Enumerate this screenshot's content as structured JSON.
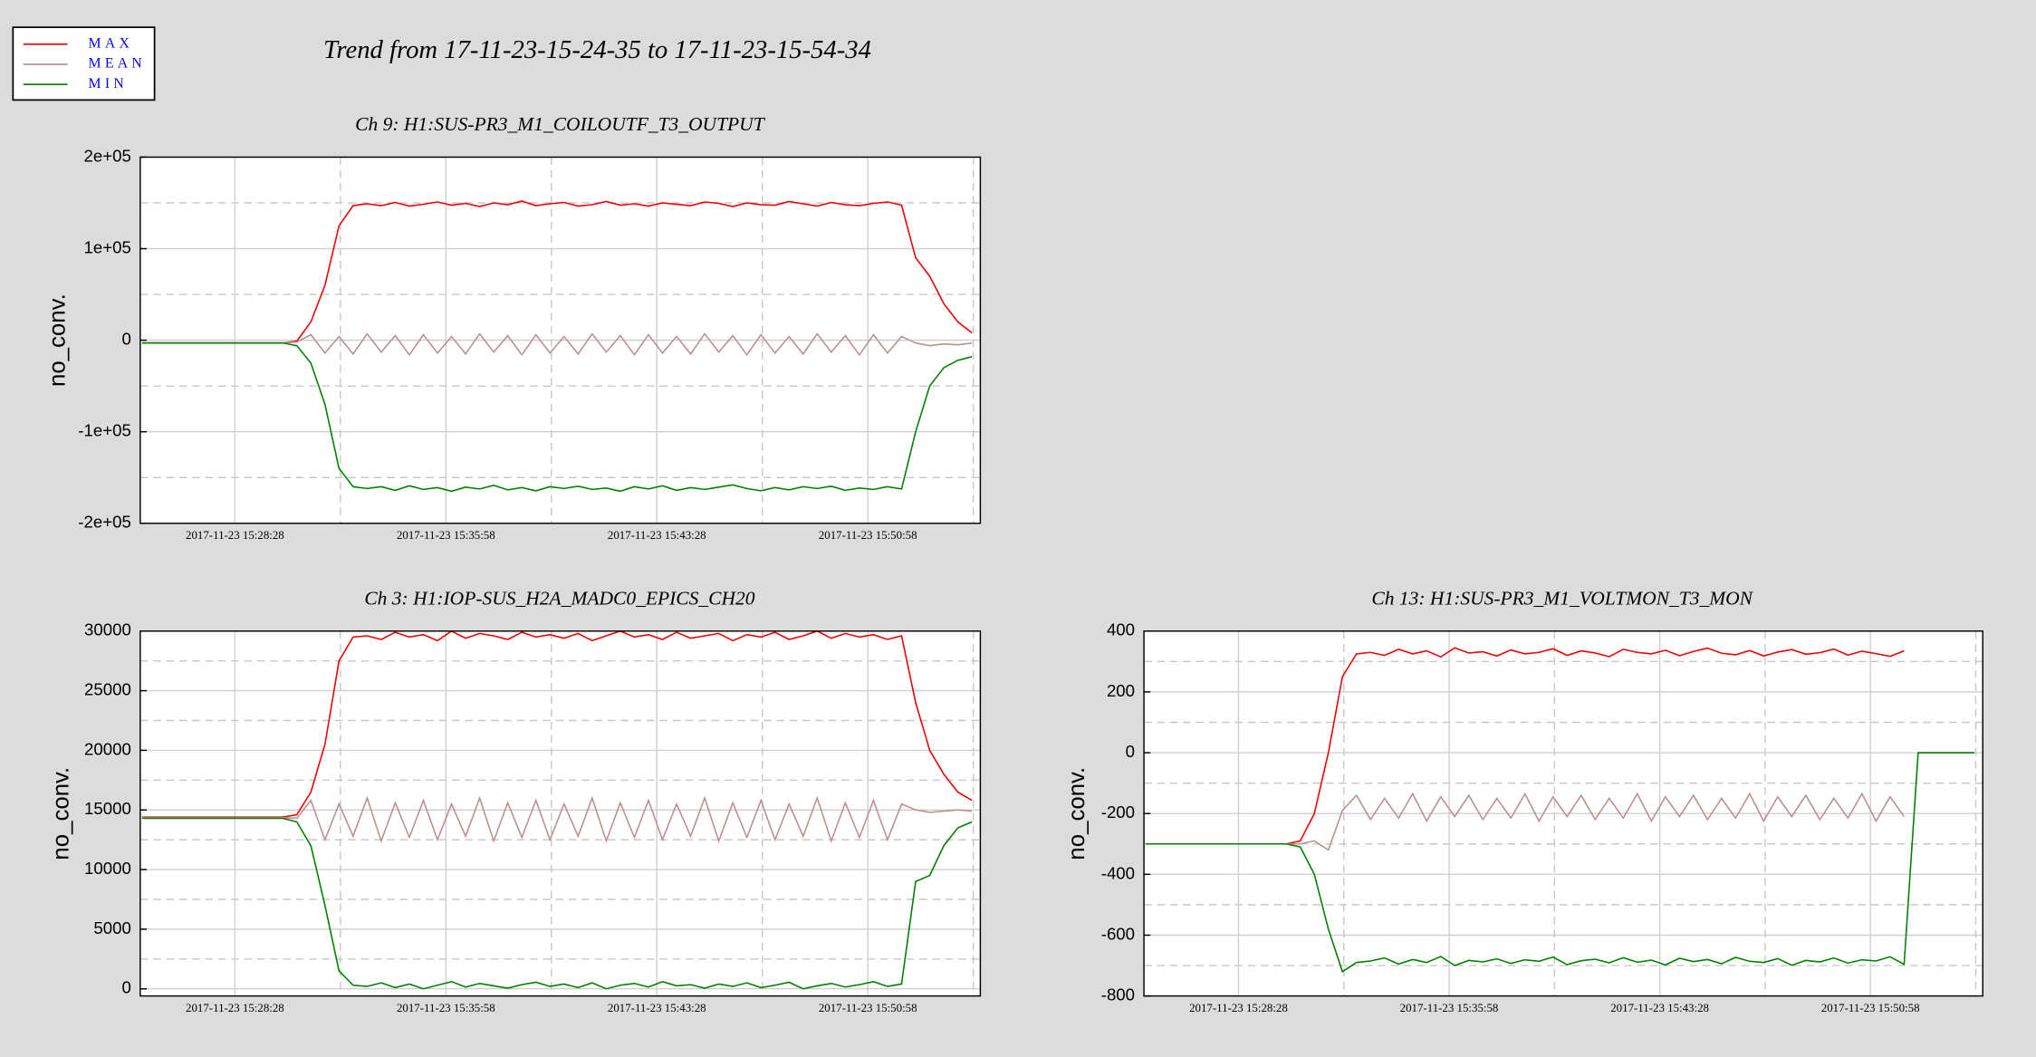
{
  "title": "Trend from 17-11-23-15-24-35 to 17-11-23-15-54-34",
  "chart_data": [
    {
      "type": "line",
      "title": "Ch 9: H1:SUS-PR3_M1_COILOUTF_T3_OUTPUT",
      "ylabel": "no_conv.",
      "grid": true,
      "x": [
        "2017-11-23 15:25:10",
        "2017-11-23 15:25:40",
        "2017-11-23 15:26:10",
        "2017-11-23 15:26:40",
        "2017-11-23 15:27:10",
        "2017-11-23 15:27:40",
        "2017-11-23 15:28:10",
        "2017-11-23 15:28:40",
        "2017-11-23 15:29:10",
        "2017-11-23 15:29:40",
        "2017-11-23 15:30:10",
        "2017-11-23 15:30:40",
        "2017-11-23 15:31:10",
        "2017-11-23 15:31:40",
        "2017-11-23 15:32:10",
        "2017-11-23 15:32:40",
        "2017-11-23 15:33:10",
        "2017-11-23 15:33:40",
        "2017-11-23 15:34:10",
        "2017-11-23 15:34:40",
        "2017-11-23 15:35:10",
        "2017-11-23 15:35:40",
        "2017-11-23 15:36:10",
        "2017-11-23 15:36:40",
        "2017-11-23 15:37:10",
        "2017-11-23 15:37:40",
        "2017-11-23 15:38:10",
        "2017-11-23 15:38:40",
        "2017-11-23 15:39:10",
        "2017-11-23 15:39:40",
        "2017-11-23 15:40:10",
        "2017-11-23 15:40:40",
        "2017-11-23 15:41:10",
        "2017-11-23 15:41:40",
        "2017-11-23 15:42:10",
        "2017-11-23 15:42:40",
        "2017-11-23 15:43:10",
        "2017-11-23 15:43:40",
        "2017-11-23 15:44:10",
        "2017-11-23 15:44:40",
        "2017-11-23 15:45:10",
        "2017-11-23 15:45:40",
        "2017-11-23 15:46:10",
        "2017-11-23 15:46:40",
        "2017-11-23 15:47:10",
        "2017-11-23 15:47:40",
        "2017-11-23 15:48:10",
        "2017-11-23 15:48:40",
        "2017-11-23 15:49:10",
        "2017-11-23 15:49:40",
        "2017-11-23 15:50:10",
        "2017-11-23 15:50:40",
        "2017-11-23 15:51:10",
        "2017-11-23 15:51:40",
        "2017-11-23 15:52:10",
        "2017-11-23 15:52:40",
        "2017-11-23 15:53:10",
        "2017-11-23 15:53:40",
        "2017-11-23 15:54:10",
        "2017-11-23 15:54:40"
      ],
      "xlim": [
        "2017-11-23 15:25:06",
        "2017-11-23 15:54:58"
      ],
      "xticks": [
        "2017-11-23 15:28:28",
        "2017-11-23 15:35:58",
        "2017-11-23 15:43:28",
        "2017-11-23 15:50:58"
      ],
      "ylim": [
        -200000,
        200000
      ],
      "yticks": [
        {
          "value": -200000,
          "label": "-2e+05"
        },
        {
          "value": -100000,
          "label": "-1e+05"
        },
        0,
        {
          "value": 100000,
          "label": "1e+05"
        },
        {
          "value": 200000,
          "label": "2e+05"
        }
      ],
      "series": [
        {
          "name": "MAX",
          "color": "#ee0000",
          "values": [
            -3000,
            -3000,
            -3000,
            -3000,
            -3000,
            -3000,
            -3000,
            -3000,
            -3000,
            -3000,
            -3000,
            -1000,
            20000,
            60000,
            125000,
            147000,
            149000,
            147000,
            150500,
            146500,
            148500,
            151000,
            147500,
            149500,
            146000,
            150000,
            148000,
            152000,
            147000,
            149000,
            150500,
            146500,
            148000,
            151500,
            147500,
            149000,
            146500,
            150000,
            148500,
            147000,
            151000,
            149500,
            146000,
            150000,
            148000,
            147500,
            151500,
            149000,
            146500,
            150500,
            148000,
            147000,
            149500,
            151000,
            147500,
            90000,
            70000,
            40000,
            20000,
            8000
          ]
        },
        {
          "name": "MEAN",
          "color": "#bc8f8f",
          "values": [
            -3000,
            -3000,
            -3000,
            -3000,
            -3000,
            -3000,
            -3000,
            -3000,
            -3000,
            -3000,
            -3000,
            -2000,
            6000,
            -14000,
            4000,
            -15000,
            7000,
            -13000,
            5000,
            -16000,
            6000,
            -14000,
            4000,
            -15000,
            7000,
            -13000,
            5000,
            -16000,
            6000,
            -14000,
            4000,
            -15000,
            7000,
            -13000,
            5000,
            -16000,
            6000,
            -14000,
            4000,
            -15000,
            7000,
            -13000,
            5000,
            -16000,
            6000,
            -14000,
            4000,
            -15000,
            7000,
            -13000,
            5000,
            -16000,
            6000,
            -14000,
            4000,
            -3000,
            -6000,
            -4000,
            -5000,
            -3000
          ]
        },
        {
          "name": "MIN",
          "color": "#008000",
          "values": [
            -3000,
            -3000,
            -3000,
            -3000,
            -3000,
            -3000,
            -3000,
            -3000,
            -3000,
            -3000,
            -3000,
            -6000,
            -25000,
            -70000,
            -140000,
            -160000,
            -162000,
            -160000,
            -164000,
            -159000,
            -163000,
            -161000,
            -165000,
            -160500,
            -162500,
            -158500,
            -163500,
            -161000,
            -164500,
            -160000,
            -162000,
            -159500,
            -163000,
            -161500,
            -165000,
            -160000,
            -162500,
            -159000,
            -164000,
            -161000,
            -163000,
            -160500,
            -158000,
            -162000,
            -164500,
            -161000,
            -163500,
            -160000,
            -162000,
            -159500,
            -164000,
            -161500,
            -163000,
            -160000,
            -162500,
            -100000,
            -50000,
            -30000,
            -22000,
            -18000
          ]
        }
      ]
    },
    {
      "type": "line",
      "title": "Ch 3: H1:IOP-SUS_H2A_MADC0_EPICS_CH20",
      "ylabel": "no_conv.",
      "grid": true,
      "x": [
        "2017-11-23 15:25:10",
        "2017-11-23 15:25:40",
        "2017-11-23 15:26:10",
        "2017-11-23 15:26:40",
        "2017-11-23 15:27:10",
        "2017-11-23 15:27:40",
        "2017-11-23 15:28:10",
        "2017-11-23 15:28:40",
        "2017-11-23 15:29:10",
        "2017-11-23 15:29:40",
        "2017-11-23 15:30:10",
        "2017-11-23 15:30:40",
        "2017-11-23 15:31:10",
        "2017-11-23 15:31:40",
        "2017-11-23 15:32:10",
        "2017-11-23 15:32:40",
        "2017-11-23 15:33:10",
        "2017-11-23 15:33:40",
        "2017-11-23 15:34:10",
        "2017-11-23 15:34:40",
        "2017-11-23 15:35:10",
        "2017-11-23 15:35:40",
        "2017-11-23 15:36:10",
        "2017-11-23 15:36:40",
        "2017-11-23 15:37:10",
        "2017-11-23 15:37:40",
        "2017-11-23 15:38:10",
        "2017-11-23 15:38:40",
        "2017-11-23 15:39:10",
        "2017-11-23 15:39:40",
        "2017-11-23 15:40:10",
        "2017-11-23 15:40:40",
        "2017-11-23 15:41:10",
        "2017-11-23 15:41:40",
        "2017-11-23 15:42:10",
        "2017-11-23 15:42:40",
        "2017-11-23 15:43:10",
        "2017-11-23 15:43:40",
        "2017-11-23 15:44:10",
        "2017-11-23 15:44:40",
        "2017-11-23 15:45:10",
        "2017-11-23 15:45:40",
        "2017-11-23 15:46:10",
        "2017-11-23 15:46:40",
        "2017-11-23 15:47:10",
        "2017-11-23 15:47:40",
        "2017-11-23 15:48:10",
        "2017-11-23 15:48:40",
        "2017-11-23 15:49:10",
        "2017-11-23 15:49:40",
        "2017-11-23 15:50:10",
        "2017-11-23 15:50:40",
        "2017-11-23 15:51:10",
        "2017-11-23 15:51:40",
        "2017-11-23 15:52:10",
        "2017-11-23 15:52:40",
        "2017-11-23 15:53:10",
        "2017-11-23 15:53:40",
        "2017-11-23 15:54:10",
        "2017-11-23 15:54:40"
      ],
      "xlim": [
        "2017-11-23 15:25:06",
        "2017-11-23 15:54:58"
      ],
      "xticks": [
        "2017-11-23 15:28:28",
        "2017-11-23 15:35:58",
        "2017-11-23 15:43:28",
        "2017-11-23 15:50:58"
      ],
      "ylim": [
        -600,
        30000
      ],
      "yticks": [
        0,
        5000,
        10000,
        15000,
        20000,
        25000,
        30000
      ],
      "series": [
        {
          "name": "MAX",
          "color": "#ee0000",
          "values": [
            14400,
            14400,
            14400,
            14400,
            14400,
            14400,
            14400,
            14400,
            14400,
            14400,
            14400,
            14600,
            16500,
            20500,
            27500,
            29500,
            29600,
            29300,
            29900,
            29500,
            29700,
            29200,
            30000,
            29400,
            29800,
            29600,
            29300,
            29900,
            29500,
            29700,
            29400,
            29800,
            29200,
            29600,
            30000,
            29500,
            29700,
            29300,
            29900,
            29400,
            29600,
            29800,
            29200,
            29700,
            29500,
            29900,
            29300,
            29600,
            30000,
            29400,
            29800,
            29500,
            29700,
            29300,
            29600,
            24000,
            20000,
            18000,
            16500,
            15800
          ]
        },
        {
          "name": "MEAN",
          "color": "#bc8f8f",
          "values": [
            14350,
            14350,
            14350,
            14350,
            14350,
            14350,
            14350,
            14350,
            14350,
            14350,
            14350,
            14300,
            15800,
            12500,
            15500,
            12800,
            16000,
            12400,
            15600,
            12700,
            15800,
            12500,
            15500,
            12800,
            16000,
            12400,
            15600,
            12700,
            15800,
            12500,
            15500,
            12800,
            16000,
            12400,
            15600,
            12700,
            15800,
            12500,
            15500,
            12800,
            16000,
            12400,
            15600,
            12700,
            15800,
            12500,
            15500,
            12800,
            16000,
            12400,
            15600,
            12700,
            15800,
            12500,
            15500,
            15000,
            14800,
            14900,
            15000,
            14900
          ]
        },
        {
          "name": "MIN",
          "color": "#008000",
          "values": [
            14300,
            14300,
            14300,
            14300,
            14300,
            14300,
            14300,
            14300,
            14300,
            14300,
            14300,
            14000,
            12000,
            7000,
            1500,
            300,
            200,
            500,
            100,
            400,
            0,
            300,
            600,
            150,
            450,
            250,
            50,
            350,
            550,
            200,
            400,
            100,
            500,
            0,
            300,
            450,
            150,
            600,
            250,
            350,
            50,
            400,
            200,
            500,
            100,
            300,
            550,
            0,
            250,
            450,
            150,
            350,
            600,
            200,
            400,
            9000,
            9500,
            12000,
            13500,
            14000
          ]
        }
      ]
    },
    {
      "type": "line",
      "title": "Ch 13: H1:SUS-PR3_M1_VOLTMON_T3_MON",
      "ylabel": "no_conv.",
      "grid": true,
      "x": [
        "2017-11-23 15:25:10",
        "2017-11-23 15:25:40",
        "2017-11-23 15:26:10",
        "2017-11-23 15:26:40",
        "2017-11-23 15:27:10",
        "2017-11-23 15:27:40",
        "2017-11-23 15:28:10",
        "2017-11-23 15:28:40",
        "2017-11-23 15:29:10",
        "2017-11-23 15:29:40",
        "2017-11-23 15:30:10",
        "2017-11-23 15:30:40",
        "2017-11-23 15:31:10",
        "2017-11-23 15:31:40",
        "2017-11-23 15:32:10",
        "2017-11-23 15:32:40",
        "2017-11-23 15:33:10",
        "2017-11-23 15:33:40",
        "2017-11-23 15:34:10",
        "2017-11-23 15:34:40",
        "2017-11-23 15:35:10",
        "2017-11-23 15:35:40",
        "2017-11-23 15:36:10",
        "2017-11-23 15:36:40",
        "2017-11-23 15:37:10",
        "2017-11-23 15:37:40",
        "2017-11-23 15:38:10",
        "2017-11-23 15:38:40",
        "2017-11-23 15:39:10",
        "2017-11-23 15:39:40",
        "2017-11-23 15:40:10",
        "2017-11-23 15:40:40",
        "2017-11-23 15:41:10",
        "2017-11-23 15:41:40",
        "2017-11-23 15:42:10",
        "2017-11-23 15:42:40",
        "2017-11-23 15:43:10",
        "2017-11-23 15:43:40",
        "2017-11-23 15:44:10",
        "2017-11-23 15:44:40",
        "2017-11-23 15:45:10",
        "2017-11-23 15:45:40",
        "2017-11-23 15:46:10",
        "2017-11-23 15:46:40",
        "2017-11-23 15:47:10",
        "2017-11-23 15:47:40",
        "2017-11-23 15:48:10",
        "2017-11-23 15:48:40",
        "2017-11-23 15:49:10",
        "2017-11-23 15:49:40",
        "2017-11-23 15:50:10",
        "2017-11-23 15:50:40",
        "2017-11-23 15:51:10",
        "2017-11-23 15:51:40",
        "2017-11-23 15:52:10",
        "2017-11-23 15:52:40",
        "2017-11-23 15:53:10",
        "2017-11-23 15:53:40",
        "2017-11-23 15:54:10",
        "2017-11-23 15:54:40"
      ],
      "xlim": [
        "2017-11-23 15:25:06",
        "2017-11-23 15:54:58"
      ],
      "xticks": [
        "2017-11-23 15:28:28",
        "2017-11-23 15:35:58",
        "2017-11-23 15:43:28",
        "2017-11-23 15:50:58"
      ],
      "ylim": [
        -800,
        400
      ],
      "yticks": [
        -800,
        -600,
        -400,
        -200,
        0,
        200,
        400
      ],
      "series": [
        {
          "name": "MAX",
          "color": "#ee0000",
          "values": [
            -300,
            -300,
            -300,
            -300,
            -300,
            -300,
            -300,
            -300,
            -300,
            -300,
            -300,
            -290,
            -200,
            0,
            250,
            325,
            330,
            320,
            340,
            325,
            335,
            315,
            345,
            328,
            332,
            318,
            338,
            325,
            330,
            342,
            320,
            335,
            328,
            316,
            340,
            330,
            325,
            337,
            319,
            333,
            344,
            327,
            322,
            336,
            318,
            331,
            339,
            324,
            329,
            341,
            321,
            334,
            326,
            317,
            335,
            null,
            null,
            null,
            null,
            null
          ]
        },
        {
          "name": "MEAN",
          "color": "#bc8f8f",
          "values": [
            -300,
            -300,
            -300,
            -300,
            -300,
            -300,
            -300,
            -300,
            -300,
            -300,
            -300,
            -300,
            -290,
            -320,
            -190,
            -140,
            -220,
            -150,
            -215,
            -135,
            -225,
            -145,
            -210,
            -140,
            -220,
            -150,
            -215,
            -135,
            -225,
            -145,
            -210,
            -140,
            -220,
            -150,
            -215,
            -135,
            -225,
            -145,
            -210,
            -140,
            -220,
            -150,
            -215,
            -135,
            -225,
            -145,
            -210,
            -140,
            -220,
            -150,
            -215,
            -135,
            -225,
            -145,
            -210,
            null,
            null,
            null,
            null,
            null
          ]
        },
        {
          "name": "MIN",
          "color": "#008000",
          "values": [
            -300,
            -300,
            -300,
            -300,
            -300,
            -300,
            -300,
            -300,
            -300,
            -300,
            -300,
            -310,
            -400,
            -580,
            -720,
            -690,
            -685,
            -675,
            -695,
            -680,
            -690,
            -670,
            -700,
            -683,
            -688,
            -678,
            -693,
            -681,
            -686,
            -672,
            -697,
            -684,
            -679,
            -691,
            -674,
            -689,
            -682,
            -698,
            -676,
            -687,
            -680,
            -694,
            -673,
            -686,
            -690,
            -677,
            -699,
            -683,
            -688,
            -675,
            -692,
            -681,
            -685,
            -671,
            -696,
            0,
            0,
            0,
            0,
            0
          ]
        }
      ]
    }
  ]
}
